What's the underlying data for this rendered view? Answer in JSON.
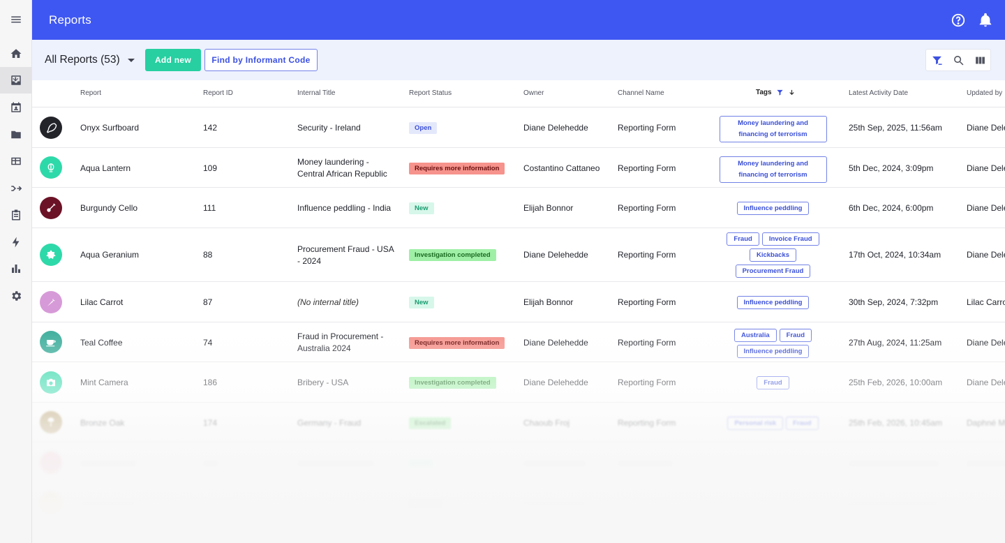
{
  "header": {
    "title": "Reports"
  },
  "toolbar": {
    "view_label": "All Reports (53)",
    "add_label": "Add new",
    "find_label": "Find by Informant Code"
  },
  "columns": {
    "report": "Report",
    "report_id": "Report ID",
    "internal_title": "Internal Title",
    "report_status": "Report Status",
    "owner": "Owner",
    "channel": "Channel Name",
    "tags": "Tags",
    "latest_activity": "Latest Activity Date",
    "updated_by": "Updated by"
  },
  "rows": [
    {
      "report": "Onyx Surfboard",
      "id": "142",
      "title": "Security - Ireland",
      "status": "Open",
      "owner": "Diane Delehedde",
      "channel": "Reporting Form",
      "tags": [
        "Money laundering and financing of terrorism"
      ],
      "date": "25th Sep, 2025, 11:56am",
      "updated_by": "Diane Dele"
    },
    {
      "report": "Aqua Lantern",
      "id": "109",
      "title": "Money laundering - Central African Republic",
      "status": "Requires more information",
      "owner": "Costantino Cattaneo",
      "channel": "Reporting Form",
      "tags": [
        "Money laundering and financing of terrorism"
      ],
      "date": "5th Dec, 2024, 3:09pm",
      "updated_by": "Diane Dele"
    },
    {
      "report": "Burgundy Cello",
      "id": "111",
      "title": "Influence peddling - India",
      "status": "New",
      "owner": "Elijah Bonnor",
      "channel": "Reporting Form",
      "tags": [
        "Influence peddling"
      ],
      "date": "6th Dec, 2024, 6:00pm",
      "updated_by": "Diane Dele"
    },
    {
      "report": "Aqua Geranium",
      "id": "88",
      "title": "Procurement Fraud - USA - 2024",
      "status": "Investigation completed",
      "owner": "Diane Delehedde",
      "channel": "Reporting Form",
      "tags": [
        "Fraud",
        "Invoice Fraud",
        "Kickbacks",
        "Procurement Fraud"
      ],
      "date": "17th Oct, 2024, 10:34am",
      "updated_by": "Diane Dele"
    },
    {
      "report": "Lilac Carrot",
      "id": "87",
      "title": "(No internal title)",
      "status": "New",
      "owner": "Elijah Bonnor",
      "channel": "Reporting Form",
      "tags": [
        "Influence peddling"
      ],
      "date": "30th Sep, 2024, 7:32pm",
      "updated_by": "Lilac Carro"
    },
    {
      "report": "Teal Coffee",
      "id": "74",
      "title": "Fraud in Procurement - Australia 2024",
      "status": "Requires more information",
      "owner": "Diane Delehedde",
      "channel": "Reporting Form",
      "tags": [
        "Australia",
        "Fraud",
        "Influence peddling"
      ],
      "date": "27th Aug, 2024, 11:25am",
      "updated_by": "Diane Dele"
    },
    {
      "report": "Mint Camera",
      "id": "186",
      "title": "Bribery - USA",
      "status": "Investigation completed",
      "owner": "Diane Delehedde",
      "channel": "Reporting Form",
      "tags": [
        "Fraud"
      ],
      "date": "25th Feb, 2026, 10:00am",
      "updated_by": "Diane Dele"
    },
    {
      "report": "Bronze Oak",
      "id": "174",
      "title": "Germany - Fraud",
      "status": "Escalated",
      "owner": "Chaoub Froj",
      "channel": "Reporting Form",
      "tags": [
        "Personal risk",
        "Fraud"
      ],
      "date": "25th Feb, 2026, 10:45am",
      "updated_by": "Daphné Mo"
    }
  ],
  "colors": {
    "brand": "#3f57f2",
    "add_button": "#27cfa1",
    "status_open_bg": "#e4e8fb",
    "status_requires_bg": "#f6938c",
    "status_new_bg": "#d7f7ea",
    "status_completed_bg": "#9ff0a6"
  }
}
